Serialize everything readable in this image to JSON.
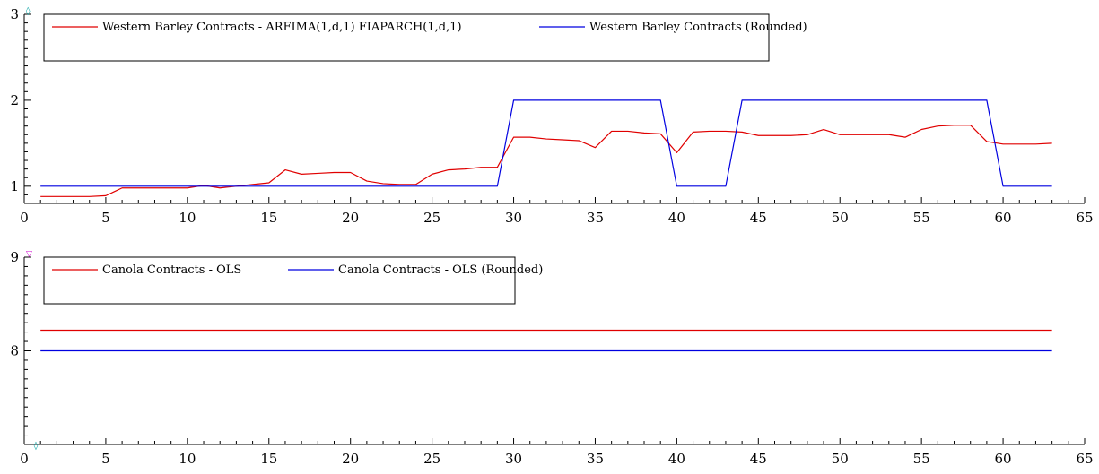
{
  "chart_data": [
    {
      "type": "line",
      "title": "",
      "xlabel": "",
      "ylabel": "",
      "xlim": [
        0,
        65
      ],
      "ylim": [
        0.8,
        3
      ],
      "x_ticks": [
        0,
        5,
        10,
        15,
        20,
        25,
        30,
        35,
        40,
        45,
        50,
        55,
        60,
        65
      ],
      "y_ticks": [
        1,
        2,
        3
      ],
      "grid": false,
      "legend_position": "top-left",
      "x": [
        1,
        2,
        3,
        4,
        5,
        6,
        7,
        8,
        9,
        10,
        11,
        12,
        13,
        14,
        15,
        16,
        17,
        18,
        19,
        20,
        21,
        22,
        23,
        24,
        25,
        26,
        27,
        28,
        29,
        30,
        31,
        32,
        33,
        34,
        35,
        36,
        37,
        38,
        39,
        40,
        41,
        42,
        43,
        44,
        45,
        46,
        47,
        48,
        49,
        50,
        51,
        52,
        53,
        54,
        55,
        56,
        57,
        58,
        59,
        60,
        61,
        62,
        63
      ],
      "series": [
        {
          "name": "Western Barley Contracts - ARFIMA(1,d,1) FIAPARCH(1,d,1)",
          "color": "#e00000",
          "values": [
            0.88,
            0.88,
            0.88,
            0.88,
            0.89,
            0.98,
            0.98,
            0.98,
            0.98,
            0.98,
            1.01,
            0.98,
            1.0,
            1.02,
            1.04,
            1.19,
            1.14,
            1.15,
            1.16,
            1.16,
            1.06,
            1.03,
            1.02,
            1.02,
            1.14,
            1.19,
            1.2,
            1.22,
            1.22,
            1.57,
            1.57,
            1.55,
            1.54,
            1.53,
            1.45,
            1.64,
            1.64,
            1.62,
            1.61,
            1.39,
            1.63,
            1.64,
            1.64,
            1.63,
            1.59,
            1.59,
            1.59,
            1.6,
            1.66,
            1.6,
            1.6,
            1.6,
            1.6,
            1.57,
            1.66,
            1.7,
            1.71,
            1.71,
            1.52,
            1.49,
            1.49,
            1.49,
            1.5
          ]
        },
        {
          "name": "Western Barley Contracts (Rounded)",
          "color": "#0000e0",
          "values": [
            1,
            1,
            1,
            1,
            1,
            1,
            1,
            1,
            1,
            1,
            1,
            1,
            1,
            1,
            1,
            1,
            1,
            1,
            1,
            1,
            1,
            1,
            1,
            1,
            1,
            1,
            1,
            1,
            1,
            2,
            2,
            2,
            2,
            2,
            2,
            2,
            2,
            2,
            2,
            1,
            1,
            1,
            1,
            2,
            2,
            2,
            2,
            2,
            2,
            2,
            2,
            2,
            2,
            2,
            2,
            2,
            2,
            2,
            2,
            1,
            1,
            1,
            1
          ]
        }
      ]
    },
    {
      "type": "line",
      "title": "",
      "xlabel": "",
      "ylabel": "",
      "xlim": [
        0,
        65
      ],
      "ylim": [
        7,
        9
      ],
      "x_ticks": [
        0,
        5,
        10,
        15,
        20,
        25,
        30,
        35,
        40,
        45,
        50,
        55,
        60,
        65
      ],
      "y_ticks": [
        8,
        9
      ],
      "grid": false,
      "legend_position": "top-left",
      "x": [
        1,
        63
      ],
      "series": [
        {
          "name": "Canola Contracts - OLS",
          "color": "#e00000",
          "values": [
            8.22,
            8.22
          ]
        },
        {
          "name": "Canola Contracts - OLS (Rounded)",
          "color": "#0000e0",
          "values": [
            8.0,
            8.0
          ]
        }
      ]
    }
  ]
}
